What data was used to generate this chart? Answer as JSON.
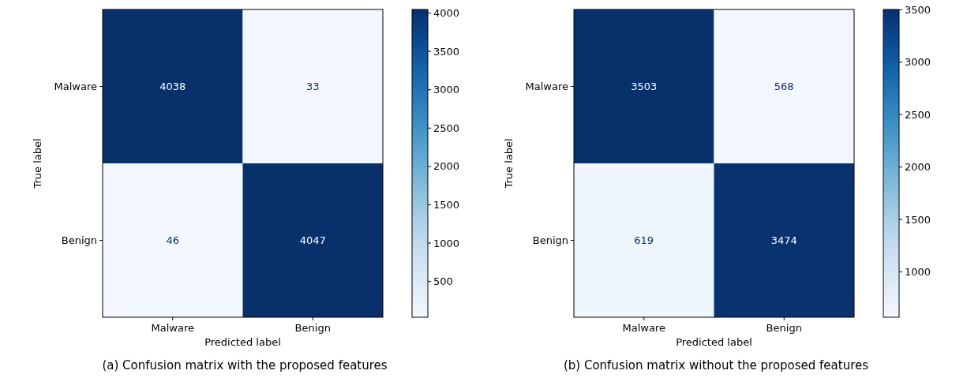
{
  "chart_data": [
    {
      "type": "heatmap",
      "categories": [
        "Malware",
        "Benign"
      ],
      "y_categories": [
        "Malware",
        "Benign"
      ],
      "cells": [
        [
          4038,
          33
        ],
        [
          46,
          4047
        ]
      ],
      "data_labels": true,
      "xlabel": "Predicted label",
      "ylabel": "True label",
      "clim": [
        33,
        4047
      ],
      "cticks": [
        500,
        1000,
        1500,
        2000,
        2500,
        3000,
        3500,
        4000
      ],
      "annotations": [
        "(a) Confusion matrix with the proposed features"
      ]
    },
    {
      "type": "heatmap",
      "categories": [
        "Malware",
        "Benign"
      ],
      "y_categories": [
        "Malware",
        "Benign"
      ],
      "cells": [
        [
          3503,
          568
        ],
        [
          619,
          3474
        ]
      ],
      "data_labels": true,
      "xlabel": "Predicted label",
      "ylabel": "True label",
      "clim": [
        568,
        3503
      ],
      "cticks": [
        1000,
        1500,
        2000,
        2500,
        3000,
        3500
      ],
      "annotations": [
        "(b) Confusion matrix without the proposed features"
      ]
    }
  ]
}
